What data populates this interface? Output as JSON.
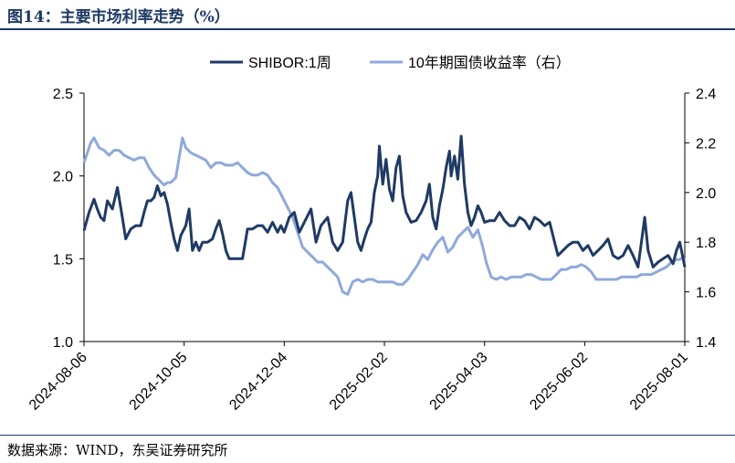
{
  "figure": {
    "title": "图14：主要市场利率走势（%）",
    "source": "数据来源：WIND，东吴证券研究所"
  },
  "colors": {
    "shibor": "#1f3a64",
    "bond10y": "#8fa9db",
    "rule": "#1f3a64"
  },
  "chart_data": {
    "type": "line",
    "title": "",
    "legend_position": "top-center",
    "grid": false,
    "x_ticks": [
      "2024-08-06",
      "2024-10-05",
      "2024-12-04",
      "2025-02-02",
      "2025-04-03",
      "2025-06-02",
      "2025-08-01"
    ],
    "x_range": [
      "2024-08-06",
      "2025-08-01"
    ],
    "y_left": {
      "label": "",
      "range": [
        1.0,
        2.5
      ],
      "ticks": [
        "1.0",
        "1.5",
        "2.0",
        "2.5"
      ]
    },
    "y_right": {
      "label": "",
      "range": [
        1.4,
        2.4
      ],
      "ticks": [
        "1.4",
        "1.6",
        "1.8",
        "2.0",
        "2.2",
        "2.4"
      ]
    },
    "series": [
      {
        "name": "SHIBOR:1周",
        "axis": "left",
        "points": [
          [
            "2024-08-06",
            1.67
          ],
          [
            "2024-08-09",
            1.78
          ],
          [
            "2024-08-12",
            1.86
          ],
          [
            "2024-08-14",
            1.8
          ],
          [
            "2024-08-16",
            1.75
          ],
          [
            "2024-08-18",
            1.73
          ],
          [
            "2024-08-20",
            1.85
          ],
          [
            "2024-08-23",
            1.8
          ],
          [
            "2024-08-26",
            1.93
          ],
          [
            "2024-08-29",
            1.75
          ],
          [
            "2024-08-31",
            1.62
          ],
          [
            "2024-09-03",
            1.68
          ],
          [
            "2024-09-06",
            1.7
          ],
          [
            "2024-09-09",
            1.7
          ],
          [
            "2024-09-11",
            1.78
          ],
          [
            "2024-09-13",
            1.85
          ],
          [
            "2024-09-15",
            1.85
          ],
          [
            "2024-09-17",
            1.87
          ],
          [
            "2024-09-19",
            1.94
          ],
          [
            "2024-09-21",
            1.88
          ],
          [
            "2024-09-23",
            1.9
          ],
          [
            "2024-09-25",
            1.83
          ],
          [
            "2024-09-27",
            1.72
          ],
          [
            "2024-09-29",
            1.62
          ],
          [
            "2024-10-01",
            1.55
          ],
          [
            "2024-10-03",
            1.64
          ],
          [
            "2024-10-06",
            1.7
          ],
          [
            "2024-10-08",
            1.8
          ],
          [
            "2024-10-10",
            1.55
          ],
          [
            "2024-10-12",
            1.6
          ],
          [
            "2024-10-14",
            1.55
          ],
          [
            "2024-10-16",
            1.6
          ],
          [
            "2024-10-19",
            1.6
          ],
          [
            "2024-10-22",
            1.62
          ],
          [
            "2024-10-24",
            1.68
          ],
          [
            "2024-10-26",
            1.73
          ],
          [
            "2024-10-28",
            1.65
          ],
          [
            "2024-10-30",
            1.55
          ],
          [
            "2024-11-01",
            1.5
          ],
          [
            "2024-11-05",
            1.5
          ],
          [
            "2024-11-09",
            1.5
          ],
          [
            "2024-11-12",
            1.68
          ],
          [
            "2024-11-15",
            1.68
          ],
          [
            "2024-11-18",
            1.7
          ],
          [
            "2024-11-21",
            1.7
          ],
          [
            "2024-11-24",
            1.66
          ],
          [
            "2024-11-27",
            1.72
          ],
          [
            "2024-11-30",
            1.66
          ],
          [
            "2024-12-02",
            1.7
          ],
          [
            "2024-12-04",
            1.66
          ],
          [
            "2024-12-07",
            1.75
          ],
          [
            "2024-12-10",
            1.78
          ],
          [
            "2024-12-13",
            1.66
          ],
          [
            "2024-12-16",
            1.72
          ],
          [
            "2024-12-20",
            1.8
          ],
          [
            "2024-12-23",
            1.6
          ],
          [
            "2024-12-26",
            1.7
          ],
          [
            "2024-12-30",
            1.75
          ],
          [
            "2025-01-02",
            1.6
          ],
          [
            "2025-01-05",
            1.55
          ],
          [
            "2025-01-08",
            1.6
          ],
          [
            "2025-01-11",
            1.85
          ],
          [
            "2025-01-13",
            1.9
          ],
          [
            "2025-01-15",
            1.75
          ],
          [
            "2025-01-17",
            1.6
          ],
          [
            "2025-01-19",
            1.55
          ],
          [
            "2025-01-21",
            1.62
          ],
          [
            "2025-01-23",
            1.68
          ],
          [
            "2025-01-25",
            1.72
          ],
          [
            "2025-01-27",
            1.9
          ],
          [
            "2025-01-29",
            2.0
          ],
          [
            "2025-01-30",
            2.18
          ],
          [
            "2025-02-01",
            1.95
          ],
          [
            "2025-02-03",
            2.1
          ],
          [
            "2025-02-05",
            1.92
          ],
          [
            "2025-02-07",
            1.85
          ],
          [
            "2025-02-09",
            2.05
          ],
          [
            "2025-02-11",
            2.12
          ],
          [
            "2025-02-13",
            1.88
          ],
          [
            "2025-02-15",
            1.78
          ],
          [
            "2025-02-18",
            1.72
          ],
          [
            "2025-02-21",
            1.73
          ],
          [
            "2025-02-24",
            1.78
          ],
          [
            "2025-02-27",
            1.85
          ],
          [
            "2025-03-01",
            1.95
          ],
          [
            "2025-03-03",
            1.75
          ],
          [
            "2025-03-05",
            1.68
          ],
          [
            "2025-03-07",
            1.82
          ],
          [
            "2025-03-09",
            1.92
          ],
          [
            "2025-03-11",
            2.05
          ],
          [
            "2025-03-13",
            2.15
          ],
          [
            "2025-03-14",
            2.0
          ],
          [
            "2025-03-16",
            2.12
          ],
          [
            "2025-03-18",
            1.98
          ],
          [
            "2025-03-20",
            2.24
          ],
          [
            "2025-03-22",
            1.95
          ],
          [
            "2025-03-24",
            1.78
          ],
          [
            "2025-03-26",
            1.7
          ],
          [
            "2025-03-28",
            1.75
          ],
          [
            "2025-03-30",
            1.82
          ],
          [
            "2025-04-01",
            1.78
          ],
          [
            "2025-04-03",
            1.72
          ],
          [
            "2025-04-06",
            1.73
          ],
          [
            "2025-04-09",
            1.73
          ],
          [
            "2025-04-12",
            1.78
          ],
          [
            "2025-04-15",
            1.73
          ],
          [
            "2025-04-18",
            1.7
          ],
          [
            "2025-04-21",
            1.7
          ],
          [
            "2025-04-24",
            1.75
          ],
          [
            "2025-04-27",
            1.73
          ],
          [
            "2025-04-30",
            1.68
          ],
          [
            "2025-05-03",
            1.75
          ],
          [
            "2025-05-06",
            1.73
          ],
          [
            "2025-05-09",
            1.7
          ],
          [
            "2025-05-12",
            1.72
          ],
          [
            "2025-05-15",
            1.6
          ],
          [
            "2025-05-17",
            1.52
          ],
          [
            "2025-05-20",
            1.55
          ],
          [
            "2025-05-23",
            1.58
          ],
          [
            "2025-05-26",
            1.6
          ],
          [
            "2025-05-29",
            1.6
          ],
          [
            "2025-06-01",
            1.55
          ],
          [
            "2025-06-04",
            1.58
          ],
          [
            "2025-06-07",
            1.52
          ],
          [
            "2025-06-10",
            1.55
          ],
          [
            "2025-06-13",
            1.58
          ],
          [
            "2025-06-16",
            1.62
          ],
          [
            "2025-06-19",
            1.52
          ],
          [
            "2025-06-22",
            1.5
          ],
          [
            "2025-06-25",
            1.52
          ],
          [
            "2025-06-28",
            1.58
          ],
          [
            "2025-07-01",
            1.52
          ],
          [
            "2025-07-04",
            1.45
          ],
          [
            "2025-07-06",
            1.6
          ],
          [
            "2025-07-08",
            1.75
          ],
          [
            "2025-07-10",
            1.55
          ],
          [
            "2025-07-13",
            1.45
          ],
          [
            "2025-07-16",
            1.48
          ],
          [
            "2025-07-19",
            1.5
          ],
          [
            "2025-07-22",
            1.52
          ],
          [
            "2025-07-25",
            1.47
          ],
          [
            "2025-07-27",
            1.55
          ],
          [
            "2025-07-29",
            1.6
          ],
          [
            "2025-07-31",
            1.5
          ],
          [
            "2025-08-01",
            1.45
          ]
        ]
      },
      {
        "name": "10年期国债收益率（右）",
        "axis": "right",
        "points": [
          [
            "2024-08-06",
            2.12
          ],
          [
            "2024-08-08",
            2.16
          ],
          [
            "2024-08-10",
            2.2
          ],
          [
            "2024-08-12",
            2.22
          ],
          [
            "2024-08-15",
            2.18
          ],
          [
            "2024-08-18",
            2.17
          ],
          [
            "2024-08-21",
            2.15
          ],
          [
            "2024-08-24",
            2.17
          ],
          [
            "2024-08-27",
            2.17
          ],
          [
            "2024-08-30",
            2.15
          ],
          [
            "2024-09-02",
            2.14
          ],
          [
            "2024-09-05",
            2.13
          ],
          [
            "2024-09-08",
            2.14
          ],
          [
            "2024-09-11",
            2.14
          ],
          [
            "2024-09-14",
            2.1
          ],
          [
            "2024-09-17",
            2.07
          ],
          [
            "2024-09-20",
            2.05
          ],
          [
            "2024-09-23",
            2.03
          ],
          [
            "2024-09-25",
            2.04
          ],
          [
            "2024-09-27",
            2.04
          ],
          [
            "2024-09-30",
            2.06
          ],
          [
            "2024-10-02",
            2.14
          ],
          [
            "2024-10-04",
            2.22
          ],
          [
            "2024-10-06",
            2.18
          ],
          [
            "2024-10-09",
            2.16
          ],
          [
            "2024-10-12",
            2.15
          ],
          [
            "2024-10-15",
            2.14
          ],
          [
            "2024-10-18",
            2.13
          ],
          [
            "2024-10-21",
            2.1
          ],
          [
            "2024-10-24",
            2.12
          ],
          [
            "2024-10-27",
            2.12
          ],
          [
            "2024-10-30",
            2.11
          ],
          [
            "2024-11-03",
            2.11
          ],
          [
            "2024-11-06",
            2.12
          ],
          [
            "2024-11-09",
            2.1
          ],
          [
            "2024-11-12",
            2.08
          ],
          [
            "2024-11-15",
            2.07
          ],
          [
            "2024-11-18",
            2.07
          ],
          [
            "2024-11-21",
            2.08
          ],
          [
            "2024-11-24",
            2.07
          ],
          [
            "2024-11-27",
            2.04
          ],
          [
            "2024-11-30",
            2.02
          ],
          [
            "2024-12-03",
            1.98
          ],
          [
            "2024-12-06",
            1.94
          ],
          [
            "2024-12-09",
            1.9
          ],
          [
            "2024-12-12",
            1.84
          ],
          [
            "2024-12-15",
            1.78
          ],
          [
            "2024-12-18",
            1.76
          ],
          [
            "2024-12-21",
            1.74
          ],
          [
            "2024-12-24",
            1.72
          ],
          [
            "2024-12-27",
            1.72
          ],
          [
            "2024-12-30",
            1.7
          ],
          [
            "2025-01-02",
            1.68
          ],
          [
            "2025-01-05",
            1.66
          ],
          [
            "2025-01-08",
            1.6
          ],
          [
            "2025-01-11",
            1.59
          ],
          [
            "2025-01-14",
            1.64
          ],
          [
            "2025-01-17",
            1.65
          ],
          [
            "2025-01-20",
            1.64
          ],
          [
            "2025-01-23",
            1.65
          ],
          [
            "2025-01-26",
            1.65
          ],
          [
            "2025-01-29",
            1.64
          ],
          [
            "2025-02-01",
            1.64
          ],
          [
            "2025-02-04",
            1.64
          ],
          [
            "2025-02-07",
            1.64
          ],
          [
            "2025-02-10",
            1.63
          ],
          [
            "2025-02-13",
            1.63
          ],
          [
            "2025-02-16",
            1.65
          ],
          [
            "2025-02-19",
            1.68
          ],
          [
            "2025-02-22",
            1.71
          ],
          [
            "2025-02-25",
            1.75
          ],
          [
            "2025-02-28",
            1.73
          ],
          [
            "2025-03-03",
            1.77
          ],
          [
            "2025-03-06",
            1.8
          ],
          [
            "2025-03-09",
            1.82
          ],
          [
            "2025-03-12",
            1.76
          ],
          [
            "2025-03-15",
            1.78
          ],
          [
            "2025-03-18",
            1.82
          ],
          [
            "2025-03-21",
            1.84
          ],
          [
            "2025-03-24",
            1.86
          ],
          [
            "2025-03-27",
            1.82
          ],
          [
            "2025-03-30",
            1.85
          ],
          [
            "2025-04-02",
            1.78
          ],
          [
            "2025-04-04",
            1.72
          ],
          [
            "2025-04-07",
            1.66
          ],
          [
            "2025-04-10",
            1.65
          ],
          [
            "2025-04-13",
            1.66
          ],
          [
            "2025-04-16",
            1.65
          ],
          [
            "2025-04-19",
            1.66
          ],
          [
            "2025-04-22",
            1.66
          ],
          [
            "2025-04-25",
            1.66
          ],
          [
            "2025-04-28",
            1.67
          ],
          [
            "2025-05-01",
            1.67
          ],
          [
            "2025-05-04",
            1.66
          ],
          [
            "2025-05-07",
            1.65
          ],
          [
            "2025-05-10",
            1.65
          ],
          [
            "2025-05-13",
            1.65
          ],
          [
            "2025-05-16",
            1.67
          ],
          [
            "2025-05-19",
            1.69
          ],
          [
            "2025-05-22",
            1.69
          ],
          [
            "2025-05-25",
            1.7
          ],
          [
            "2025-05-28",
            1.7
          ],
          [
            "2025-05-31",
            1.71
          ],
          [
            "2025-06-03",
            1.7
          ],
          [
            "2025-06-06",
            1.68
          ],
          [
            "2025-06-09",
            1.65
          ],
          [
            "2025-06-12",
            1.65
          ],
          [
            "2025-06-15",
            1.65
          ],
          [
            "2025-06-18",
            1.65
          ],
          [
            "2025-06-21",
            1.65
          ],
          [
            "2025-06-24",
            1.66
          ],
          [
            "2025-06-27",
            1.66
          ],
          [
            "2025-06-30",
            1.66
          ],
          [
            "2025-07-03",
            1.66
          ],
          [
            "2025-07-06",
            1.67
          ],
          [
            "2025-07-09",
            1.67
          ],
          [
            "2025-07-12",
            1.67
          ],
          [
            "2025-07-15",
            1.68
          ],
          [
            "2025-07-18",
            1.69
          ],
          [
            "2025-07-21",
            1.7
          ],
          [
            "2025-07-24",
            1.72
          ],
          [
            "2025-07-27",
            1.73
          ],
          [
            "2025-07-29",
            1.73
          ],
          [
            "2025-07-31",
            1.74
          ],
          [
            "2025-08-01",
            1.72
          ]
        ]
      }
    ]
  }
}
